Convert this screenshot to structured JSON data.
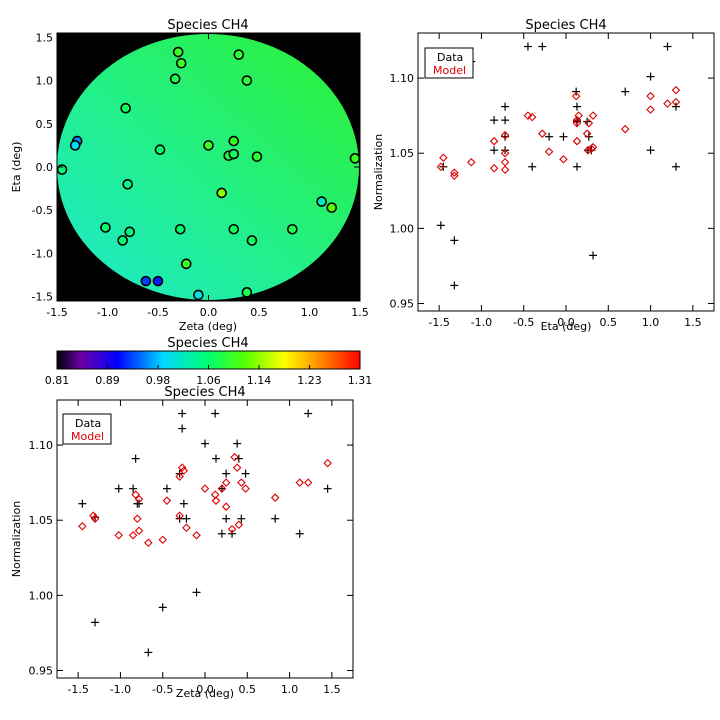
{
  "chart_data": [
    {
      "type": "scatter",
      "title": "Species CH4",
      "xlabel": "Zeta (deg)",
      "ylabel": "Eta (deg)",
      "xlim": [
        -1.5,
        1.5
      ],
      "ylim": [
        -1.55,
        1.55
      ],
      "xticks": [
        "-1.5",
        "-1.0",
        "-0.5",
        "0.0",
        "0.5",
        "1.0",
        "1.5"
      ],
      "yticks": [
        "-1.5",
        "-1.0",
        "-0.5",
        "0.0",
        "0.5",
        "1.0",
        "1.5"
      ],
      "background": "#000000",
      "field": "circular normalization map, green with cyan toward lower-left",
      "points": [
        {
          "x": 0.3,
          "y": 1.3,
          "v": 1.09
        },
        {
          "x": -0.3,
          "y": 1.33,
          "v": 1.1
        },
        {
          "x": -0.27,
          "y": 1.2,
          "v": 1.1
        },
        {
          "x": -0.33,
          "y": 1.02,
          "v": 1.08
        },
        {
          "x": 0.38,
          "y": 1.0,
          "v": 1.09
        },
        {
          "x": -0.82,
          "y": 0.68,
          "v": 1.07
        },
        {
          "x": -1.3,
          "y": 0.3,
          "v": 0.96
        },
        {
          "x": -1.32,
          "y": 0.25,
          "v": 0.99
        },
        {
          "x": 0.25,
          "y": 0.3,
          "v": 1.1
        },
        {
          "x": 0.0,
          "y": 0.25,
          "v": 1.1
        },
        {
          "x": -0.48,
          "y": 0.2,
          "v": 1.06
        },
        {
          "x": 0.2,
          "y": 0.13,
          "v": 1.08
        },
        {
          "x": 0.25,
          "y": 0.15,
          "v": 1.07
        },
        {
          "x": 0.48,
          "y": 0.12,
          "v": 1.09
        },
        {
          "x": -1.45,
          "y": -0.03,
          "v": 1.06
        },
        {
          "x": 1.45,
          "y": 0.1,
          "v": 1.1
        },
        {
          "x": -0.8,
          "y": -0.2,
          "v": 1.05
        },
        {
          "x": 0.13,
          "y": -0.3,
          "v": 1.14
        },
        {
          "x": 1.12,
          "y": -0.4,
          "v": 1.02
        },
        {
          "x": 1.22,
          "y": -0.47,
          "v": 1.12
        },
        {
          "x": -1.02,
          "y": -0.7,
          "v": 1.06
        },
        {
          "x": -0.78,
          "y": -0.75,
          "v": 1.05
        },
        {
          "x": -0.28,
          "y": -0.72,
          "v": 1.06
        },
        {
          "x": 0.25,
          "y": -0.72,
          "v": 1.07
        },
        {
          "x": 0.83,
          "y": -0.72,
          "v": 1.08
        },
        {
          "x": -0.85,
          "y": -0.85,
          "v": 1.06
        },
        {
          "x": 0.43,
          "y": -0.85,
          "v": 1.07
        },
        {
          "x": -0.22,
          "y": -1.12,
          "v": 1.1
        },
        {
          "x": -0.62,
          "y": -1.32,
          "v": 0.93
        },
        {
          "x": -0.5,
          "y": -1.32,
          "v": 0.92
        },
        {
          "x": 0.38,
          "y": -1.45,
          "v": 1.08
        },
        {
          "x": -0.1,
          "y": -1.48,
          "v": 1.0
        }
      ]
    },
    {
      "type": "scatter",
      "title": "Species CH4",
      "xlabel": "Eta (deg)",
      "ylabel": "Normalization",
      "xlim": [
        -1.75,
        1.75
      ],
      "ylim": [
        0.945,
        1.13
      ],
      "xticks": [
        "-1.5",
        "-1.0",
        "-0.5",
        "0.0",
        "0.5",
        "1.0",
        "1.5"
      ],
      "yticks": [
        "0.95",
        "1.00",
        "1.05",
        "1.10"
      ],
      "legend": [
        "Data",
        "Model"
      ],
      "legend_position": "top-left",
      "series": [
        {
          "name": "Data",
          "marker": "plus",
          "color": "#000000",
          "points": [
            [
              -1.45,
              1.041
            ],
            [
              -1.48,
              1.002
            ],
            [
              -1.32,
              0.992
            ],
            [
              -1.32,
              0.962
            ],
            [
              -1.12,
              1.111
            ],
            [
              -0.85,
              1.072
            ],
            [
              -0.85,
              1.052
            ],
            [
              -0.72,
              1.081
            ],
            [
              -0.72,
              1.072
            ],
            [
              -0.72,
              1.052
            ],
            [
              -0.72,
              1.061
            ],
            [
              -0.45,
              1.121
            ],
            [
              -0.4,
              1.041
            ],
            [
              -0.28,
              1.121
            ],
            [
              -0.2,
              1.061
            ],
            [
              -0.03,
              1.061
            ],
            [
              0.12,
              1.091
            ],
            [
              0.13,
              1.081
            ],
            [
              0.13,
              1.071
            ],
            [
              0.13,
              1.072
            ],
            [
              0.13,
              1.041
            ],
            [
              0.25,
              1.071
            ],
            [
              0.26,
              1.052
            ],
            [
              0.27,
              1.061
            ],
            [
              0.3,
              1.052
            ],
            [
              0.32,
              0.982
            ],
            [
              0.7,
              1.091
            ],
            [
              1.0,
              1.101
            ],
            [
              1.0,
              1.052
            ],
            [
              1.2,
              1.121
            ],
            [
              1.3,
              1.081
            ],
            [
              1.3,
              1.041
            ]
          ]
        },
        {
          "name": "Model",
          "marker": "diamond",
          "color": "#dd0000",
          "points": [
            [
              -1.48,
              1.041
            ],
            [
              -1.45,
              1.047
            ],
            [
              -1.32,
              1.037
            ],
            [
              -1.32,
              1.035
            ],
            [
              -1.12,
              1.044
            ],
            [
              -0.85,
              1.04
            ],
            [
              -0.85,
              1.058
            ],
            [
              -0.72,
              1.044
            ],
            [
              -0.72,
              1.039
            ],
            [
              -0.72,
              1.05
            ],
            [
              -0.72,
              1.062
            ],
            [
              -0.45,
              1.075
            ],
            [
              -0.4,
              1.074
            ],
            [
              -0.28,
              1.063
            ],
            [
              -0.2,
              1.051
            ],
            [
              -0.03,
              1.046
            ],
            [
              0.12,
              1.088
            ],
            [
              0.13,
              1.072
            ],
            [
              0.13,
              1.07
            ],
            [
              0.15,
              1.075
            ],
            [
              0.13,
              1.058
            ],
            [
              0.25,
              1.063
            ],
            [
              0.26,
              1.052
            ],
            [
              0.27,
              1.07
            ],
            [
              0.3,
              1.053
            ],
            [
              0.32,
              1.054
            ],
            [
              0.32,
              1.075
            ],
            [
              0.7,
              1.066
            ],
            [
              1.0,
              1.088
            ],
            [
              1.0,
              1.079
            ],
            [
              1.2,
              1.083
            ],
            [
              1.3,
              1.092
            ],
            [
              1.3,
              1.084
            ]
          ]
        }
      ]
    },
    {
      "type": "colorbar",
      "title": "Species CH4",
      "colormap": "rainbow (black-purple-blue-cyan-green-yellow-red)",
      "tick_labels": [
        "0.81",
        "0.89",
        "0.98",
        "1.06",
        "1.14",
        "1.23",
        "1.31"
      ],
      "range": [
        0.81,
        1.31
      ]
    },
    {
      "type": "scatter",
      "title": "Species CH4",
      "xlabel": "Zeta (deg)",
      "ylabel": "Normalization",
      "xlim": [
        -1.75,
        1.75
      ],
      "ylim": [
        0.945,
        1.13
      ],
      "xticks": [
        "-1.5",
        "-1.0",
        "-0.5",
        "0.0",
        "0.5",
        "1.0",
        "1.5"
      ],
      "yticks": [
        "0.95",
        "1.00",
        "1.05",
        "1.10"
      ],
      "legend": [
        "Data",
        "Model"
      ],
      "legend_position": "top-left",
      "series": [
        {
          "name": "Data",
          "marker": "plus",
          "color": "#000000",
          "points": [
            [
              -1.45,
              1.061
            ],
            [
              -1.3,
              1.052
            ],
            [
              -1.3,
              0.982
            ],
            [
              -1.02,
              1.071
            ],
            [
              -0.85,
              1.071
            ],
            [
              -0.82,
              1.091
            ],
            [
              -0.8,
              1.061
            ],
            [
              -0.78,
              1.061
            ],
            [
              -0.67,
              0.962
            ],
            [
              -0.5,
              0.992
            ],
            [
              -0.45,
              1.071
            ],
            [
              -0.3,
              1.081
            ],
            [
              -0.3,
              1.051
            ],
            [
              -0.27,
              1.121
            ],
            [
              -0.27,
              1.111
            ],
            [
              -0.25,
              1.061
            ],
            [
              -0.22,
              1.051
            ],
            [
              -0.1,
              1.002
            ],
            [
              0.0,
              1.101
            ],
            [
              0.12,
              1.121
            ],
            [
              0.13,
              1.091
            ],
            [
              0.2,
              1.071
            ],
            [
              0.2,
              1.041
            ],
            [
              0.25,
              1.081
            ],
            [
              0.25,
              1.051
            ],
            [
              0.32,
              1.041
            ],
            [
              0.38,
              1.101
            ],
            [
              0.4,
              1.091
            ],
            [
              0.43,
              1.051
            ],
            [
              0.48,
              1.081
            ],
            [
              0.83,
              1.051
            ],
            [
              1.12,
              1.041
            ],
            [
              1.22,
              1.121
            ],
            [
              1.45,
              1.071
            ]
          ]
        },
        {
          "name": "Model",
          "marker": "diamond",
          "color": "#dd0000",
          "points": [
            [
              -1.45,
              1.046
            ],
            [
              -1.32,
              1.053
            ],
            [
              -1.3,
              1.051
            ],
            [
              -1.02,
              1.04
            ],
            [
              -0.85,
              1.04
            ],
            [
              -0.82,
              1.067
            ],
            [
              -0.8,
              1.051
            ],
            [
              -0.78,
              1.043
            ],
            [
              -0.78,
              1.064
            ],
            [
              -0.67,
              1.035
            ],
            [
              -0.5,
              1.037
            ],
            [
              -0.45,
              1.063
            ],
            [
              -0.3,
              1.053
            ],
            [
              -0.3,
              1.079
            ],
            [
              -0.27,
              1.085
            ],
            [
              -0.25,
              1.083
            ],
            [
              -0.22,
              1.045
            ],
            [
              -0.1,
              1.04
            ],
            [
              0.0,
              1.071
            ],
            [
              0.12,
              1.067
            ],
            [
              0.13,
              1.063
            ],
            [
              0.2,
              1.071
            ],
            [
              0.25,
              1.075
            ],
            [
              0.25,
              1.059
            ],
            [
              0.32,
              1.044
            ],
            [
              0.35,
              1.092
            ],
            [
              0.38,
              1.085
            ],
            [
              0.4,
              1.047
            ],
            [
              0.43,
              1.075
            ],
            [
              0.48,
              1.071
            ],
            [
              0.83,
              1.065
            ],
            [
              1.12,
              1.075
            ],
            [
              1.22,
              1.075
            ],
            [
              1.45,
              1.088
            ]
          ]
        }
      ]
    }
  ]
}
